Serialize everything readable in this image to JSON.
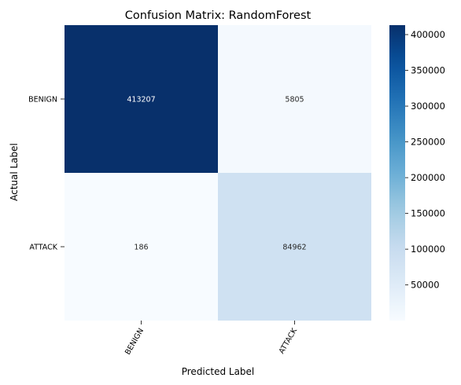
{
  "chart_data": {
    "type": "heatmap",
    "title": "Confusion Matrix: RandomForest",
    "xlabel": "Predicted Label",
    "ylabel": "Actual Label",
    "x_categories": [
      "BENIGN",
      "ATTACK"
    ],
    "y_categories": [
      "BENIGN",
      "ATTACK"
    ],
    "matrix": [
      [
        413207,
        5805
      ],
      [
        186,
        84962
      ]
    ],
    "colormap": "Blues",
    "colorbar": {
      "vmin": 186,
      "vmax": 413207,
      "ticks": [
        50000,
        100000,
        150000,
        200000,
        250000,
        300000,
        350000,
        400000
      ]
    },
    "colors": {
      "scale": [
        "#f7fbff",
        "#deebf7",
        "#c6dbef",
        "#9ecae1",
        "#6baed6",
        "#4292c6",
        "#2171b5",
        "#08519c",
        "#08306b"
      ],
      "dark_text": "#262626",
      "light_text": "#ffffff"
    }
  }
}
